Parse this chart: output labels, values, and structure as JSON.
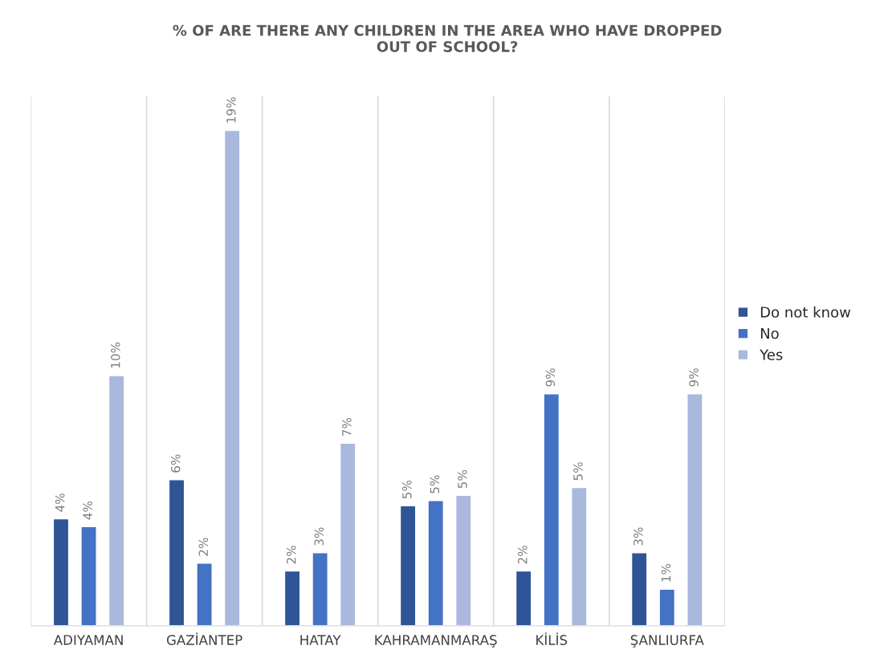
{
  "chart_data": {
    "type": "bar",
    "title": "% OF ARE THERE ANY CHILDREN IN THE AREA WHO HAVE DROPPED\nOUT OF SCHOOL?",
    "categories": [
      "ADIYAMAN",
      "GAZİANTEP",
      "HATAY",
      "KAHRAMANMARAŞ",
      "KİLİS",
      "ŞANLIURFA"
    ],
    "series": [
      {
        "name": "Do not know",
        "color": "#2f5597",
        "values": [
          4.1,
          5.6,
          2.1,
          4.6,
          2.1,
          2.8
        ],
        "value_labels": [
          "4%",
          "6%",
          "2%",
          "5%",
          "2%",
          "3%"
        ]
      },
      {
        "name": "No",
        "color": "#4472c4",
        "values": [
          3.8,
          2.4,
          2.8,
          4.8,
          8.9,
          1.4
        ],
        "value_labels": [
          "4%",
          "2%",
          "3%",
          "5%",
          "9%",
          "1%"
        ]
      },
      {
        "name": "Yes",
        "color": "#a9b8dc",
        "values": [
          9.6,
          19.0,
          7.0,
          5.0,
          5.3,
          8.9
        ],
        "value_labels": [
          "10%",
          "19%",
          "7%",
          "5%",
          "5%",
          "9%"
        ]
      }
    ],
    "grid": "x",
    "legend": "right"
  }
}
